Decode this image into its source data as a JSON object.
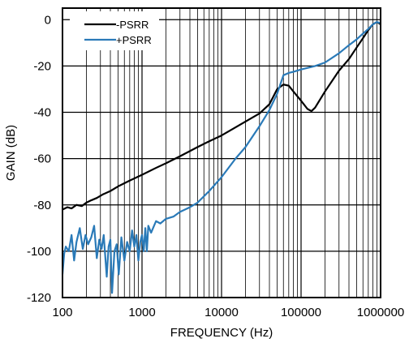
{
  "chart_data": {
    "type": "line",
    "title": "",
    "xlabel": "FREQUENCY (Hz)",
    "ylabel": "GAIN (dB)",
    "x_scale": "log",
    "xlim": [
      100,
      1000000
    ],
    "ylim": [
      -120,
      5
    ],
    "grid": true,
    "legend_position": "top-left",
    "x_ticks": [
      100,
      1000,
      10000,
      100000,
      1000000
    ],
    "x_tick_labels": [
      "100",
      "1000",
      "10000",
      "100000",
      "1000000"
    ],
    "y_ticks": [
      0,
      -20,
      -40,
      -60,
      -80,
      -100,
      -120
    ],
    "y_tick_labels": [
      "0",
      "-20",
      "-40",
      "-60",
      "-80",
      "-100",
      "-120"
    ],
    "series": [
      {
        "name": "-PSRR",
        "color": "#000000",
        "points": [
          [
            100,
            -82
          ],
          [
            115,
            -81
          ],
          [
            130,
            -81.5
          ],
          [
            150,
            -80
          ],
          [
            175,
            -80.5
          ],
          [
            200,
            -79
          ],
          [
            230,
            -78
          ],
          [
            270,
            -77
          ],
          [
            320,
            -75.5
          ],
          [
            400,
            -74
          ],
          [
            500,
            -72
          ],
          [
            700,
            -69.5
          ],
          [
            1000,
            -67
          ],
          [
            1500,
            -64
          ],
          [
            2000,
            -62
          ],
          [
            3000,
            -59
          ],
          [
            5000,
            -55
          ],
          [
            7000,
            -52.5
          ],
          [
            10000,
            -50
          ],
          [
            15000,
            -46.5
          ],
          [
            20000,
            -44
          ],
          [
            30000,
            -40.5
          ],
          [
            40000,
            -36.5
          ],
          [
            50000,
            -30
          ],
          [
            60000,
            -28
          ],
          [
            70000,
            -28.5
          ],
          [
            80000,
            -31
          ],
          [
            100000,
            -35
          ],
          [
            120000,
            -38.5
          ],
          [
            135000,
            -39.5
          ],
          [
            150000,
            -38
          ],
          [
            200000,
            -31
          ],
          [
            300000,
            -22
          ],
          [
            400000,
            -17
          ],
          [
            500000,
            -12
          ],
          [
            600000,
            -8
          ],
          [
            700000,
            -4.5
          ],
          [
            800000,
            -2
          ],
          [
            900000,
            -1
          ],
          [
            1000000,
            -2
          ]
        ]
      },
      {
        "name": "+PSRR",
        "color": "#2a7ab8",
        "points": [
          [
            100,
            -110
          ],
          [
            105,
            -101
          ],
          [
            110,
            -98
          ],
          [
            120,
            -100
          ],
          [
            130,
            -93
          ],
          [
            140,
            -104
          ],
          [
            150,
            -96
          ],
          [
            165,
            -90
          ],
          [
            180,
            -99
          ],
          [
            195,
            -93
          ],
          [
            210,
            -97
          ],
          [
            230,
            -94
          ],
          [
            250,
            -89
          ],
          [
            270,
            -103
          ],
          [
            290,
            -95
          ],
          [
            310,
            -99
          ],
          [
            330,
            -93
          ],
          [
            360,
            -111
          ],
          [
            380,
            -98
          ],
          [
            400,
            -95
          ],
          [
            420,
            -118
          ],
          [
            450,
            -100
          ],
          [
            480,
            -97
          ],
          [
            510,
            -110
          ],
          [
            550,
            -94
          ],
          [
            600,
            -104
          ],
          [
            650,
            -96
          ],
          [
            700,
            -100
          ],
          [
            750,
            -91
          ],
          [
            800,
            -98
          ],
          [
            850,
            -93
          ],
          [
            900,
            -104
          ],
          [
            950,
            -96
          ],
          [
            1000,
            -93
          ],
          [
            1050,
            -100
          ],
          [
            1100,
            -90
          ],
          [
            1150,
            -100
          ],
          [
            1200,
            -89
          ],
          [
            1300,
            -92
          ],
          [
            1500,
            -87
          ],
          [
            1700,
            -88
          ],
          [
            2000,
            -86
          ],
          [
            2500,
            -85
          ],
          [
            3000,
            -83
          ],
          [
            4000,
            -81
          ],
          [
            5000,
            -79
          ],
          [
            7000,
            -74
          ],
          [
            10000,
            -68
          ],
          [
            15000,
            -60
          ],
          [
            20000,
            -55
          ],
          [
            30000,
            -46
          ],
          [
            40000,
            -39
          ],
          [
            50000,
            -32
          ],
          [
            60000,
            -24
          ],
          [
            70000,
            -23
          ],
          [
            80000,
            -22.5
          ],
          [
            100000,
            -21.5
          ],
          [
            150000,
            -20
          ],
          [
            200000,
            -18.5
          ],
          [
            300000,
            -14.5
          ],
          [
            400000,
            -11
          ],
          [
            500000,
            -8.5
          ],
          [
            600000,
            -6
          ],
          [
            700000,
            -4
          ],
          [
            800000,
            -2
          ],
          [
            900000,
            -1
          ],
          [
            1000000,
            -1.5
          ]
        ]
      }
    ]
  }
}
